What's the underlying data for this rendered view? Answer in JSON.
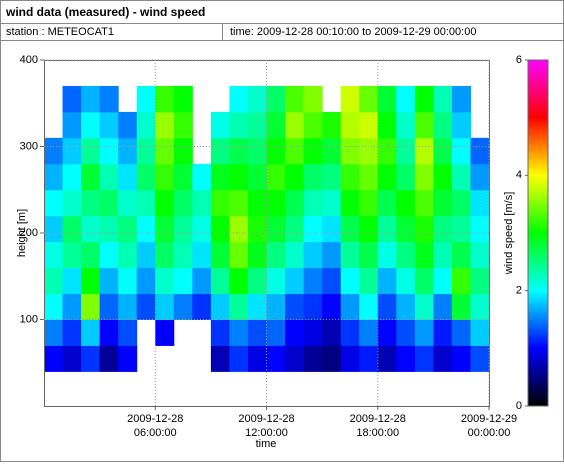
{
  "chart_data": {
    "type": "heatmap",
    "title": "wind data (measured) - wind speed",
    "station": "station : METEOCAT1",
    "period": "time: 2009-12-28 00:10:00 to 2009-12-29 00:00:00",
    "xlabel": "time",
    "ylabel": "height [m]",
    "zlabel": "wind speed [m/s]",
    "x": [
      "2009-12-28 00:00:00",
      "2009-12-28 01:00:00",
      "2009-12-28 02:00:00",
      "2009-12-28 03:00:00",
      "2009-12-28 04:00:00",
      "2009-12-28 05:00:00",
      "2009-12-28 06:00:00",
      "2009-12-28 07:00:00",
      "2009-12-28 08:00:00",
      "2009-12-28 09:00:00",
      "2009-12-28 10:00:00",
      "2009-12-28 11:00:00",
      "2009-12-28 12:00:00",
      "2009-12-28 13:00:00",
      "2009-12-28 14:00:00",
      "2009-12-28 15:00:00",
      "2009-12-28 16:00:00",
      "2009-12-28 17:00:00",
      "2009-12-28 18:00:00",
      "2009-12-28 19:00:00",
      "2009-12-28 20:00:00",
      "2009-12-28 21:00:00",
      "2009-12-28 22:00:00",
      "2009-12-28 23:00:00",
      "2009-12-29 00:00:00"
    ],
    "y": [
      40,
      70,
      100,
      130,
      160,
      190,
      220,
      250,
      280,
      310,
      340,
      370
    ],
    "values": [
      [
        1,
        0.8,
        1.2,
        0.6,
        1,
        null,
        null,
        null,
        null,
        0.7,
        1.2,
        0.9,
        1,
        0.8,
        0.6,
        0.5,
        0.9,
        1.1,
        0.7,
        1,
        1.2,
        0.8,
        1,
        1.3
      ],
      [
        1.5,
        1.2,
        1.8,
        1,
        1.3,
        null,
        1,
        null,
        null,
        1.2,
        1.5,
        1.3,
        1.4,
        1,
        0.9,
        0.7,
        1.2,
        1.5,
        1,
        1.3,
        1.6,
        1.1,
        1.4,
        1.8
      ],
      [
        2,
        1.6,
        3.5,
        1.4,
        1.7,
        1.3,
        1.8,
        1.5,
        1.2,
        1.8,
        2.4,
        1.9,
        1.7,
        1.3,
        1.2,
        1,
        1.6,
        2,
        1.3,
        1.7,
        2.2,
        1.5,
        2.8,
        2.2
      ],
      [
        2.3,
        1.9,
        3,
        1.7,
        2,
        1.6,
        2.2,
        2,
        1.6,
        2.4,
        3,
        2.5,
        2.1,
        1.8,
        1.5,
        1.3,
        2,
        2.4,
        1.7,
        2.1,
        2.6,
        2,
        3.2,
        2.5
      ],
      [
        2.1,
        2.4,
        2.6,
        2,
        2.3,
        1.8,
        2.6,
        2.3,
        1.9,
        2.8,
        3.4,
        2.9,
        2.5,
        2.2,
        1.8,
        1.6,
        2.4,
        2.7,
        2.1,
        2.5,
        2.9,
        2.3,
        2.7,
        2.2
      ],
      [
        1.8,
        2.6,
        2.2,
        2.3,
        2.5,
        2,
        2.8,
        2.4,
        2.1,
        3,
        3.6,
        3.1,
        2.8,
        2.5,
        2,
        1.9,
        2.7,
        3,
        2.4,
        2.8,
        3.1,
        2.5,
        2.4,
        2
      ],
      [
        2,
        2.2,
        2.5,
        2.6,
        2.2,
        2.3,
        3,
        2.6,
        2.3,
        3.2,
        3.3,
        3,
        3,
        2.7,
        2.3,
        2.2,
        3,
        3.2,
        2.7,
        3,
        3.3,
        2.8,
        2.6,
        1.9
      ],
      [
        1.7,
        2,
        2.8,
        2.3,
        1.9,
        2.6,
        3.2,
        2.8,
        2,
        2.9,
        3,
        2.8,
        3.2,
        3,
        2.6,
        2.5,
        3.2,
        3.4,
        3,
        2.6,
        3.5,
        3,
        2.3,
        1.6
      ],
      [
        1.5,
        1.8,
        2.4,
        2,
        1.7,
        2.4,
        3.4,
        3,
        null,
        2.5,
        2.7,
        2.6,
        3,
        3.3,
        3,
        2.8,
        3.5,
        3.6,
        3.2,
        2.4,
        3.7,
        2.7,
        2,
        1.4
      ],
      [
        null,
        1.6,
        2,
        1.8,
        1.5,
        2.2,
        3.6,
        3.2,
        null,
        2.1,
        2.3,
        2.4,
        2.8,
        3.6,
        3.3,
        3.1,
        3.7,
        3.8,
        3,
        2.2,
        3.3,
        2.5,
        1.8,
        null
      ],
      [
        null,
        1.4,
        1.7,
        1.5,
        null,
        2,
        3.2,
        3,
        null,
        null,
        2,
        2.2,
        2.6,
        3.3,
        3.5,
        null,
        3.8,
        3.4,
        2.8,
        2,
        3,
        2.3,
        1.6,
        null
      ]
    ],
    "xlim": [
      "2009-12-28 00:00:00",
      "2009-12-29 00:00:00"
    ],
    "xticks": [
      {
        "value": "2009-12-28 06:00:00",
        "label": [
          "2009-12-28",
          "06:00:00"
        ]
      },
      {
        "value": "2009-12-28 12:00:00",
        "label": [
          "2009-12-28",
          "12:00:00"
        ]
      },
      {
        "value": "2009-12-28 18:00:00",
        "label": [
          "2009-12-28",
          "18:00:00"
        ]
      },
      {
        "value": "2009-12-29 00:00:00",
        "label": [
          "2009-12-29",
          "00:00:00"
        ]
      }
    ],
    "ylim": [
      0,
      400
    ],
    "yticks": [
      100,
      200,
      300,
      400
    ],
    "zlim": [
      0,
      6
    ],
    "zticks": [
      0,
      2,
      4,
      6
    ],
    "colorscale": [
      "#000000",
      "#0000ff",
      "#00ffff",
      "#00ff00",
      "#ffff00",
      "#ff0000",
      "#ff00ff"
    ],
    "grid": true
  }
}
